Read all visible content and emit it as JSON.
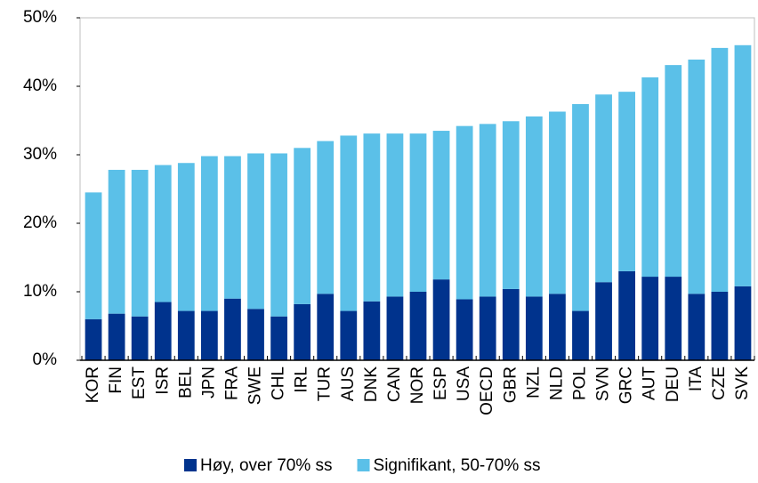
{
  "chart_data": {
    "type": "stacked_bar",
    "categories": [
      "KOR",
      "FIN",
      "EST",
      "ISR",
      "BEL",
      "JPN",
      "FRA",
      "SWE",
      "CHL",
      "IRL",
      "TUR",
      "AUS",
      "DNK",
      "CAN",
      "NOR",
      "ESP",
      "USA",
      "OECD",
      "GBR",
      "NZL",
      "NLD",
      "POL",
      "SVN",
      "GRC",
      "AUT",
      "DEU",
      "ITA",
      "CZE",
      "SVK"
    ],
    "series": [
      {
        "name": "Høy, over 70% ss",
        "color": "#00338d",
        "values": [
          6,
          6.8,
          6.4,
          8.5,
          7.2,
          7.2,
          9,
          7.5,
          6.4,
          8.2,
          9.7,
          7.2,
          8.6,
          9.3,
          10,
          11.8,
          8.9,
          9.3,
          10.4,
          9.3,
          9.7,
          7.2,
          11.4,
          13,
          12.2,
          12.2,
          9.7,
          10,
          10.8
        ]
      },
      {
        "name": "Signifikant, 50-70% ss",
        "color": "#5bc0e8",
        "values": [
          18.5,
          21,
          21.4,
          20,
          21.6,
          22.6,
          20.8,
          22.7,
          23.8,
          22.8,
          22.3,
          25.6,
          24.5,
          23.8,
          23.1,
          21.7,
          25.3,
          25.2,
          24.5,
          26.3,
          26.6,
          30.2,
          27.4,
          26.2,
          29.1,
          30.9,
          34.2,
          35.6,
          35.2
        ]
      }
    ],
    "ylim": [
      0,
      50
    ],
    "yticks": [
      {
        "value": 0,
        "label": "0%"
      },
      {
        "value": 10,
        "label": "10%"
      },
      {
        "value": 20,
        "label": "20%"
      },
      {
        "value": 30,
        "label": "30%"
      },
      {
        "value": 40,
        "label": "40%"
      },
      {
        "value": 50,
        "label": "50%"
      }
    ],
    "legend": "bottom"
  }
}
